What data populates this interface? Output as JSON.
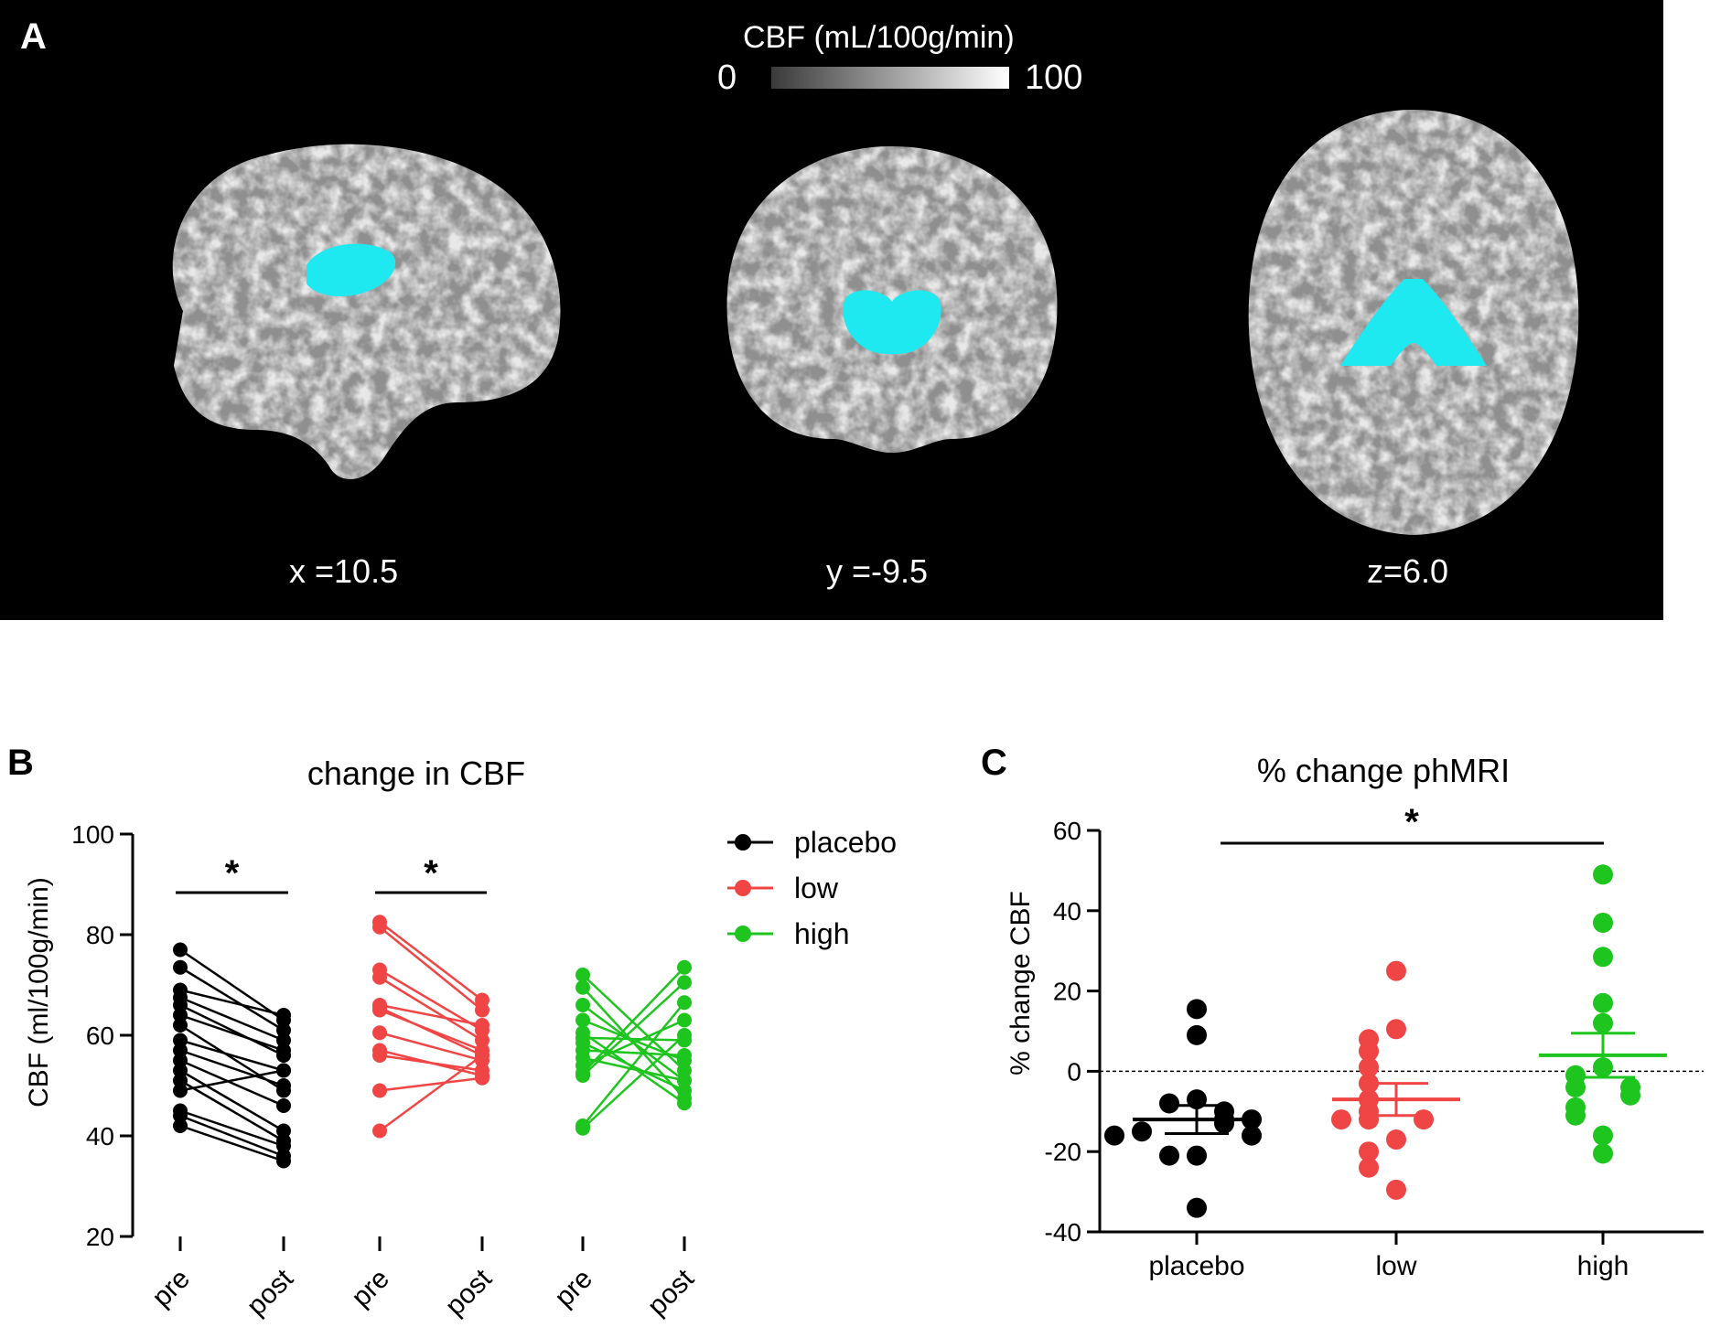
{
  "panel_a": {
    "label": "A",
    "colorbar": {
      "title": "CBF (mL/100g/min)",
      "min": "0",
      "max": "100"
    },
    "slices": [
      {
        "view": "sagittal",
        "coordinate": "x =10.5"
      },
      {
        "view": "coronal",
        "coordinate": "y =-9.5"
      },
      {
        "view": "axial",
        "coordinate": "z=6.0"
      }
    ],
    "colors": {
      "background": "#000000",
      "roi": "#1ee8f0",
      "brain": "#9a9a9a"
    }
  },
  "panel_b_label": "B",
  "panel_c_label": "C",
  "chart_data": [
    {
      "type": "line",
      "title": "change in CBF",
      "xlabel": "",
      "ylabel": "CBF (ml/100g/min)",
      "ylim": [
        20,
        100
      ],
      "yticks": [
        "20",
        "40",
        "60",
        "80",
        "100"
      ],
      "categories": [
        "pre",
        "post",
        "pre",
        "post",
        "pre",
        "post"
      ],
      "legend": [
        "placebo",
        "low",
        "high"
      ],
      "legend_position": "top-right",
      "significance": [
        {
          "between": "pre-post placebo",
          "label": "*"
        },
        {
          "between": "pre-post low",
          "label": "*"
        }
      ],
      "series": [
        {
          "name": "placebo",
          "color": "#000000",
          "pairs": [
            [
              77,
              63
            ],
            [
              73.5,
              61
            ],
            [
              69,
              64
            ],
            [
              67.5,
              59
            ],
            [
              66,
              56
            ],
            [
              64,
              57
            ],
            [
              62,
              49
            ],
            [
              59,
              53
            ],
            [
              57,
              50
            ],
            [
              55,
              46
            ],
            [
              53,
              41
            ],
            [
              51,
              39
            ],
            [
              49,
              53
            ],
            [
              45,
              38
            ],
            [
              42,
              35
            ],
            [
              44,
              36
            ]
          ]
        },
        {
          "name": "low",
          "color": "#f04545",
          "pairs": [
            [
              82.5,
              67
            ],
            [
              81.5,
              65
            ],
            [
              73,
              61
            ],
            [
              71.5,
              59
            ],
            [
              66,
              62
            ],
            [
              65,
              57
            ],
            [
              65.5,
              56
            ],
            [
              60.5,
              55
            ],
            [
              57,
              52
            ],
            [
              56,
              53
            ],
            [
              49,
              51.5
            ],
            [
              41,
              56
            ]
          ]
        },
        {
          "name": "high",
          "color": "#1ec51e",
          "pairs": [
            [
              72,
              53
            ],
            [
              69.5,
              47.5
            ],
            [
              66,
              51
            ],
            [
              63,
              55
            ],
            [
              60.5,
              46.5
            ],
            [
              59.5,
              59
            ],
            [
              58.5,
              49
            ],
            [
              57,
              56
            ],
            [
              55.5,
              51
            ],
            [
              54,
              63
            ],
            [
              52.5,
              73.5
            ],
            [
              52,
              70.5
            ],
            [
              42,
              66.5
            ],
            [
              41.5,
              60
            ]
          ]
        }
      ]
    },
    {
      "type": "scatter",
      "title": "% change phMRI",
      "xlabel": "",
      "ylabel": "% change CBF",
      "ylim": [
        -40,
        60
      ],
      "yticks": [
        "-40",
        "-20",
        "0",
        "20",
        "40",
        "60"
      ],
      "categories": [
        "placebo",
        "low",
        "high"
      ],
      "significance": [
        {
          "between": "placebo-high",
          "label": "*"
        }
      ],
      "series": [
        {
          "name": "placebo",
          "color": "#000000",
          "mean": -12,
          "sem": 3.5,
          "values": [
            15.5,
            9,
            -7,
            -8,
            -10,
            -12,
            -13,
            -12,
            -15,
            -16,
            -16,
            -21,
            -21,
            -34
          ]
        },
        {
          "name": "low",
          "color": "#f04545",
          "mean": -7,
          "sem": 4,
          "values": [
            25,
            10.5,
            8,
            5,
            1,
            -3,
            -7,
            -10,
            -12,
            -12,
            -12,
            -17,
            -20,
            -24,
            -29.5
          ]
        },
        {
          "name": "high",
          "color": "#1ec51e",
          "mean": 4,
          "sem": 5.5,
          "values": [
            49,
            37,
            28.5,
            17,
            12,
            1,
            -1,
            -4,
            -4,
            -6,
            -9,
            -11,
            -16,
            -20.5
          ]
        }
      ]
    }
  ]
}
